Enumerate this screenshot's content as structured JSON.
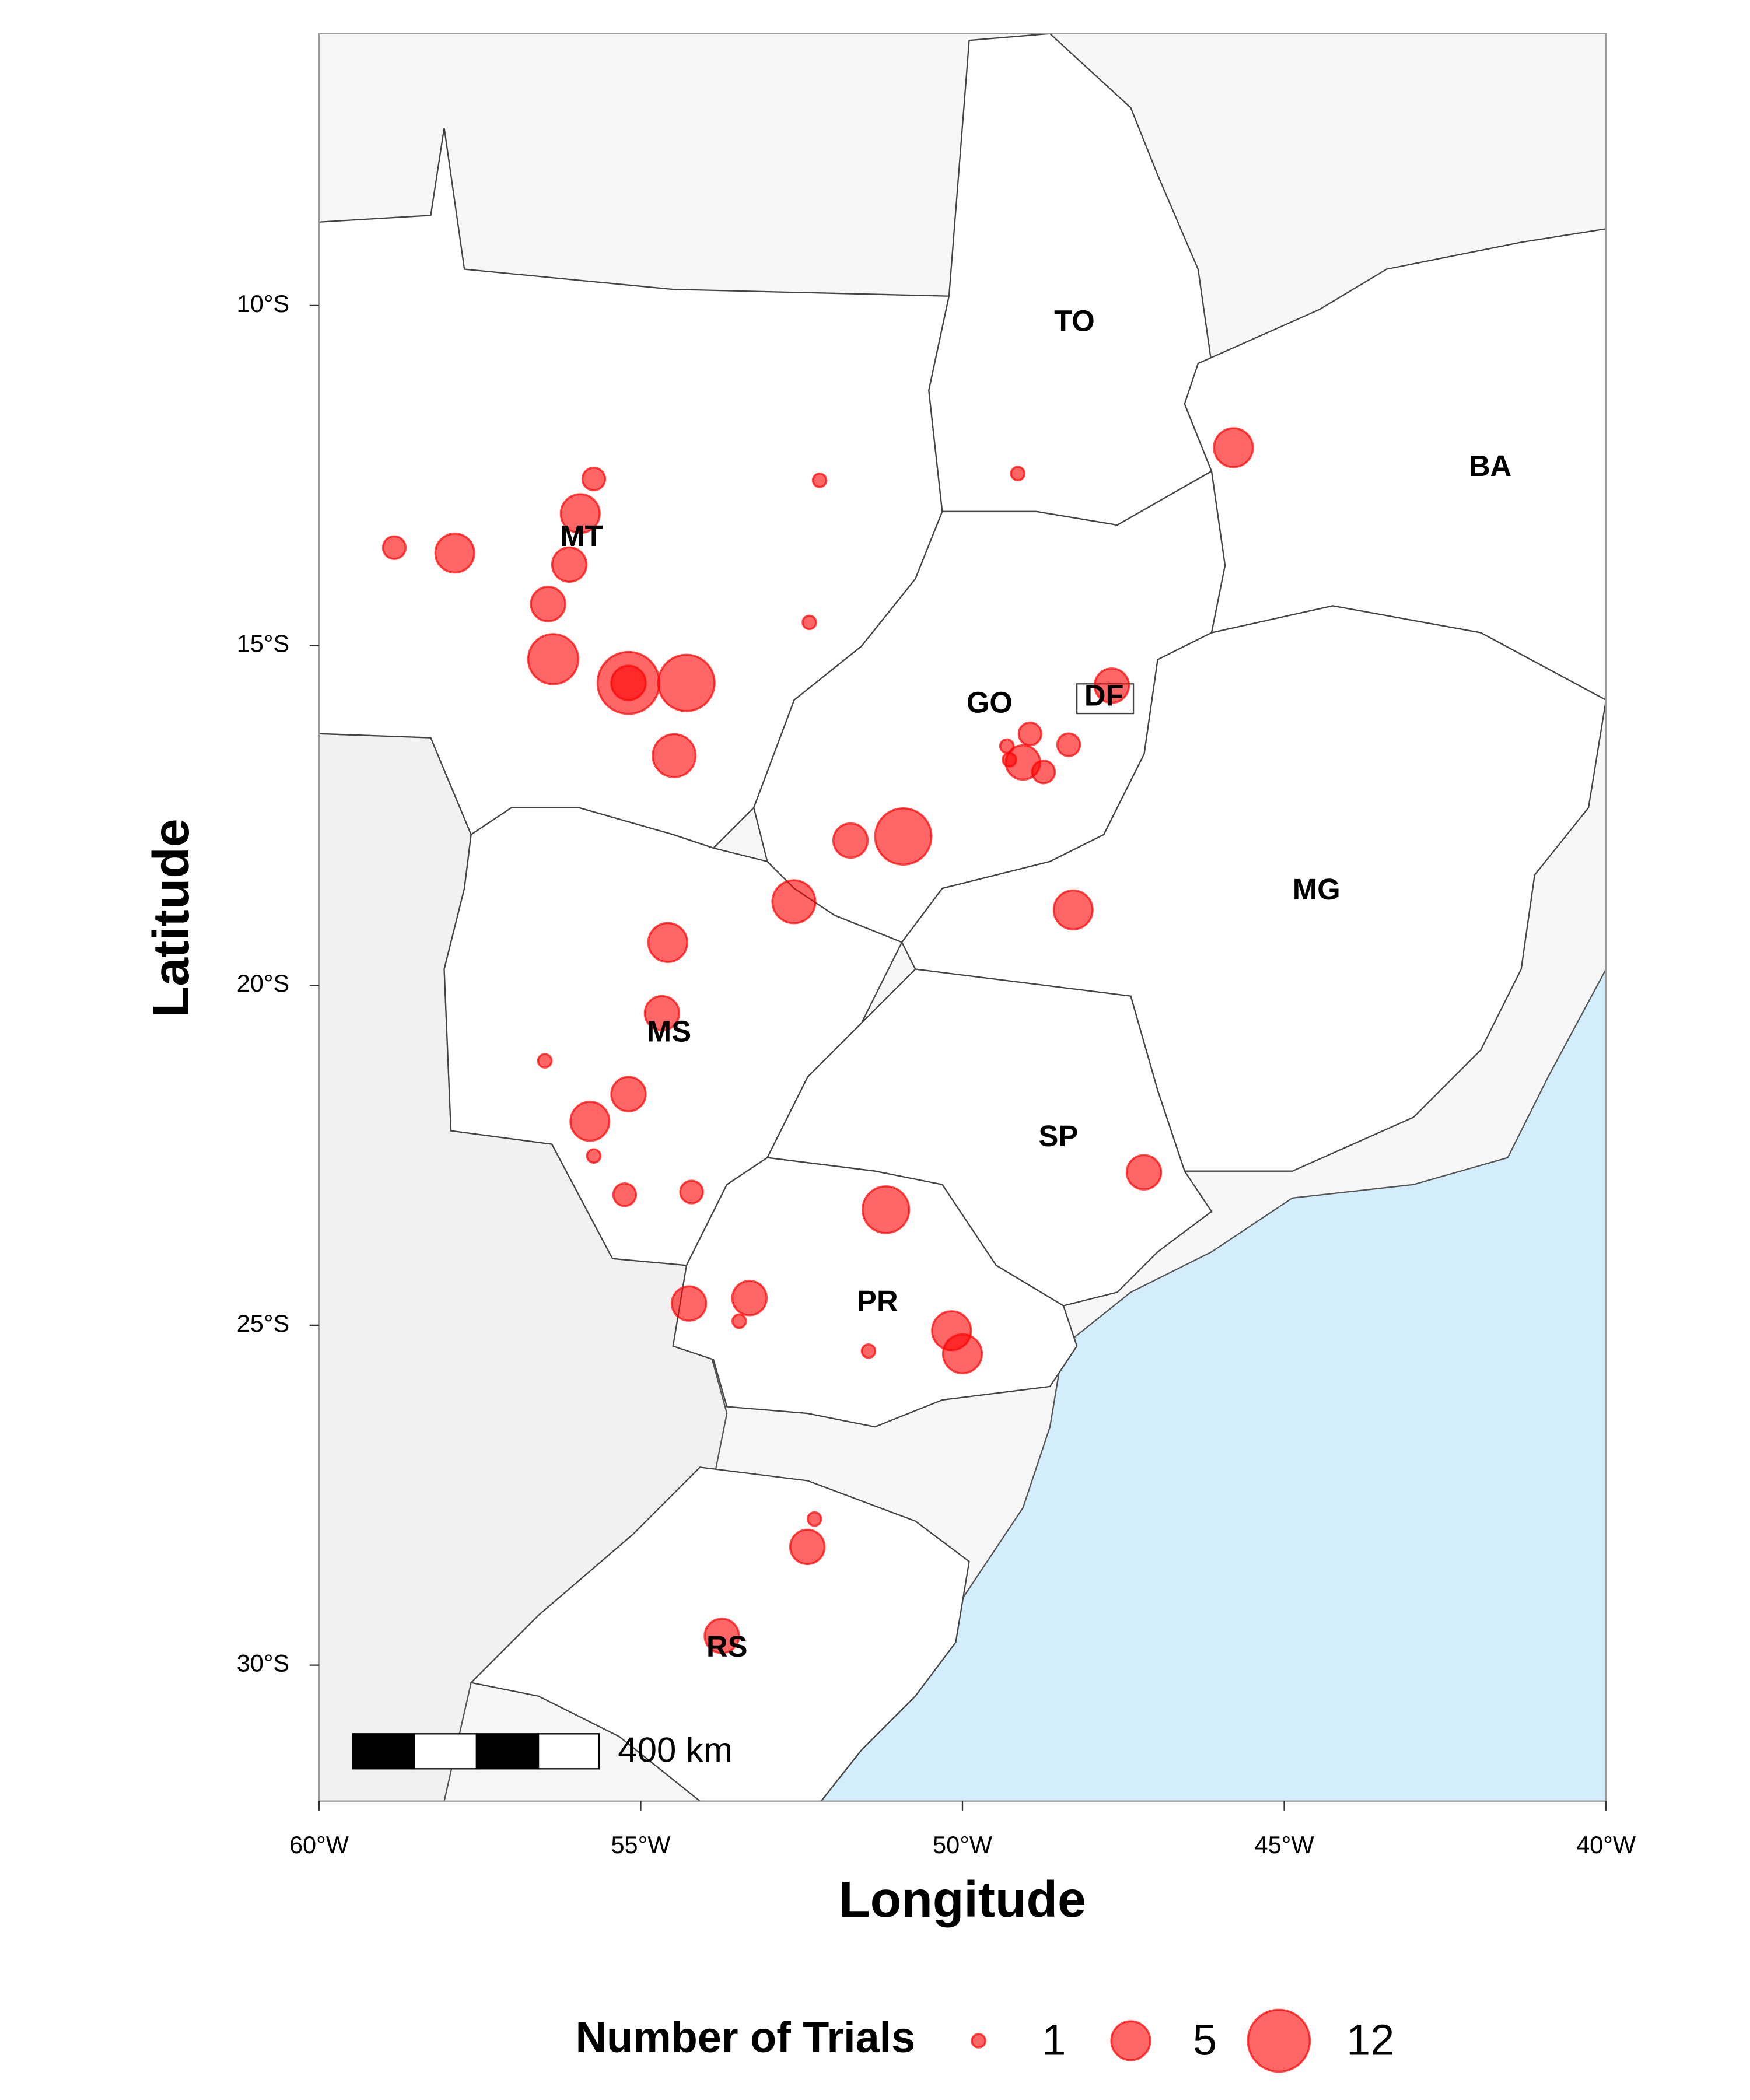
{
  "chart_data": {
    "type": "scatter",
    "xlabel": "Longitude",
    "ylabel": "Latitude",
    "xlim": [
      -60,
      -40
    ],
    "ylim": [
      -32,
      -6
    ],
    "xticks": [
      {
        "value": -60,
        "label": "60°W"
      },
      {
        "value": -55,
        "label": "55°W"
      },
      {
        "value": -50,
        "label": "50°W"
      },
      {
        "value": -45,
        "label": "45°W"
      },
      {
        "value": -40,
        "label": "40°W"
      }
    ],
    "yticks": [
      {
        "value": -10,
        "label": "10°S"
      },
      {
        "value": -15,
        "label": "15°S"
      },
      {
        "value": -20,
        "label": "20°S"
      },
      {
        "value": -25,
        "label": "25°S"
      },
      {
        "value": -30,
        "label": "30°S"
      }
    ],
    "color": "#ff0000",
    "x": [
      -45.79,
      -55.73,
      -52.22,
      -49.14,
      -55.94,
      -58.83,
      -57.89,
      -56.11,
      -56.44,
      -52.38,
      -56.36,
      -55.19,
      -55.19,
      -54.29,
      -54.48,
      -47.68,
      -48.95,
      -49.31,
      -48.35,
      -49.06,
      -49.27,
      -48.74,
      -51.74,
      -50.92,
      -52.62,
      -48.28,
      -54.58,
      -54.67,
      -56.49,
      -55.19,
      -55.79,
      -55.73,
      -55.25,
      -54.21,
      -51.19,
      -47.18,
      -53.31,
      -54.25,
      -53.47,
      -51.46,
      -50.17,
      -50.0,
      -52.3,
      -52.41,
      -53.74
    ],
    "values": [
      -12.09,
      -12.55,
      -12.57,
      -12.47,
      -13.06,
      -13.56,
      -13.64,
      -13.81,
      -14.39,
      -14.66,
      -15.2,
      -15.55,
      -15.55,
      -15.55,
      -16.62,
      -15.59,
      -16.3,
      -16.48,
      -16.46,
      -16.72,
      -16.68,
      -16.86,
      -17.87,
      -17.81,
      -18.77,
      -18.89,
      -19.37,
      -20.41,
      -21.11,
      -21.6,
      -22.0,
      -22.51,
      -23.08,
      -23.04,
      -23.3,
      -22.75,
      -24.6,
      -24.68,
      -24.94,
      -25.38,
      -25.08,
      -25.42,
      -27.85,
      -28.26,
      -29.57
    ],
    "sizes": [
      5,
      2,
      1,
      1,
      5,
      2,
      5,
      4,
      4,
      1,
      8,
      12,
      4,
      10,
      6,
      4,
      2,
      1,
      2,
      4,
      1,
      2,
      4,
      10,
      6,
      5,
      5,
      4,
      1,
      4,
      5,
      1,
      2,
      2,
      7,
      4,
      4,
      4,
      1,
      1,
      5,
      5,
      1,
      4,
      4
    ],
    "size_legend": {
      "title": "Number of Trials",
      "values": [
        1,
        5,
        12
      ]
    },
    "scale_bar_label": "400 km",
    "annotations": [
      {
        "text": "TO",
        "x": -48.26,
        "y": -10.26
      },
      {
        "text": "BA",
        "x": -41.8,
        "y": -12.39
      },
      {
        "text": "MT",
        "x": -55.92,
        "y": -13.42
      },
      {
        "text": "GO",
        "x": -49.58,
        "y": -15.87
      },
      {
        "text": "DF",
        "x": -47.8,
        "y": -15.77
      },
      {
        "text": "MG",
        "x": -44.5,
        "y": -18.62
      },
      {
        "text": "MS",
        "x": -54.56,
        "y": -20.71
      },
      {
        "text": "SP",
        "x": -48.51,
        "y": -22.25
      },
      {
        "text": "PR",
        "x": -51.32,
        "y": -24.68
      },
      {
        "text": "RS",
        "x": -53.66,
        "y": -29.76
      }
    ]
  }
}
